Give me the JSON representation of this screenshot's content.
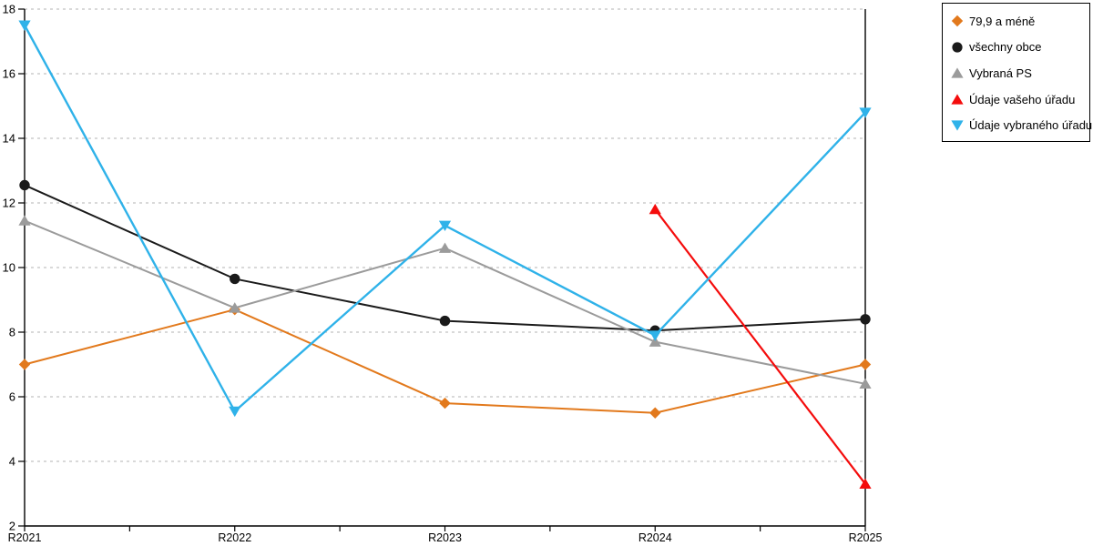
{
  "chart_data": {
    "type": "line",
    "title": "",
    "xlabel": "",
    "ylabel": "",
    "categories": [
      "R2021",
      "R2022",
      "R2023",
      "R2024",
      "R2025"
    ],
    "series": [
      {
        "name": "79,9 a méně",
        "marker": "diamond",
        "color": "#E2791C",
        "line_width": 2,
        "values": [
          7.0,
          8.7,
          5.8,
          5.5,
          7.0
        ]
      },
      {
        "name": "všechny obce",
        "marker": "circle",
        "color": "#1A1A1A",
        "line_width": 2,
        "values": [
          12.55,
          9.65,
          8.35,
          8.05,
          8.4
        ]
      },
      {
        "name": "Vybraná PS",
        "marker": "triangle-up",
        "color": "#9B9B9B",
        "line_width": 2,
        "values": [
          11.45,
          8.75,
          10.6,
          7.7,
          6.4
        ]
      },
      {
        "name": "Údaje vašeho úřadu",
        "marker": "triangle-up",
        "color": "#F40C0C",
        "line_width": 2.2,
        "values": [
          null,
          null,
          null,
          11.8,
          3.3
        ]
      },
      {
        "name": "Údaje vybraného úřadu",
        "marker": "triangle-down",
        "color": "#2FB2E9",
        "line_width": 2.4,
        "values": [
          17.5,
          5.55,
          11.3,
          7.9,
          14.8
        ]
      }
    ],
    "ylim": [
      2,
      18
    ],
    "yticks": [
      2,
      4,
      6,
      8,
      10,
      12,
      14,
      16,
      18
    ],
    "grid": "horizontal-dashed",
    "gridline_color": "#C2C2C2",
    "axis_color": "#000000",
    "legend_position": "top-right-outside",
    "minor_x_ticks_per_interval": 1
  }
}
